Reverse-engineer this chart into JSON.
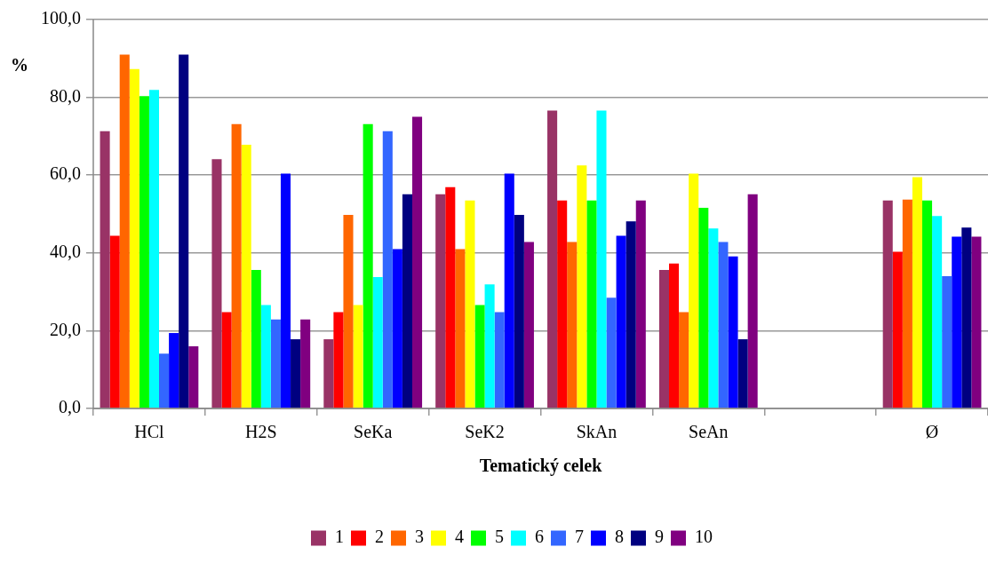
{
  "chart_data": {
    "type": "bar",
    "xlabel": "Tematický celek",
    "ylabel": "%",
    "categories": [
      "HCl",
      "H2S",
      "SeKa",
      "SeK2",
      "SkAn",
      "SeAn",
      null,
      "Ø"
    ],
    "series": [
      {
        "name": "1",
        "color": "#993366",
        "values": [
          71.3,
          64.1,
          17.8,
          55.1,
          76.6,
          35.6,
          null,
          53.5
        ]
      },
      {
        "name": "2",
        "color": "#ff0000",
        "values": [
          44.4,
          24.8,
          24.8,
          56.9,
          53.5,
          37.3,
          null,
          40.3
        ]
      },
      {
        "name": "3",
        "color": "#ff6600",
        "values": [
          91.0,
          73.1,
          49.8,
          41.0,
          42.8,
          24.8,
          null,
          53.7
        ]
      },
      {
        "name": "4",
        "color": "#ffff00",
        "values": [
          87.3,
          67.8,
          26.6,
          53.5,
          62.5,
          60.4,
          null,
          59.5
        ]
      },
      {
        "name": "5",
        "color": "#00ff00",
        "values": [
          80.3,
          35.6,
          73.1,
          26.6,
          53.5,
          51.6,
          null,
          53.5
        ]
      },
      {
        "name": "6",
        "color": "#00ffff",
        "values": [
          81.9,
          26.6,
          33.8,
          31.9,
          76.6,
          46.3,
          null,
          49.5
        ]
      },
      {
        "name": "7",
        "color": "#3366ff",
        "values": [
          14.1,
          22.9,
          71.3,
          24.8,
          28.5,
          42.8,
          null,
          34.0
        ]
      },
      {
        "name": "8",
        "color": "#0000ff",
        "values": [
          19.4,
          60.4,
          41.0,
          60.4,
          44.4,
          39.1,
          null,
          44.2
        ]
      },
      {
        "name": "9",
        "color": "#000080",
        "values": [
          91.0,
          17.8,
          55.1,
          49.8,
          48.1,
          17.8,
          null,
          46.5
        ]
      },
      {
        "name": "10",
        "color": "#800080",
        "values": [
          16.0,
          22.9,
          75.0,
          42.8,
          53.5,
          55.1,
          null,
          44.2
        ]
      }
    ],
    "ylim": [
      0,
      100
    ],
    "yticks": [
      {
        "value": 0,
        "label": "0,0"
      },
      {
        "value": 20,
        "label": "20,0"
      },
      {
        "value": 40,
        "label": "40,0"
      },
      {
        "value": 60,
        "label": "60,0"
      },
      {
        "value": 80,
        "label": "80,0"
      },
      {
        "value": 100,
        "label": "100,0"
      }
    ],
    "grid": "y",
    "legend": "bottom"
  }
}
